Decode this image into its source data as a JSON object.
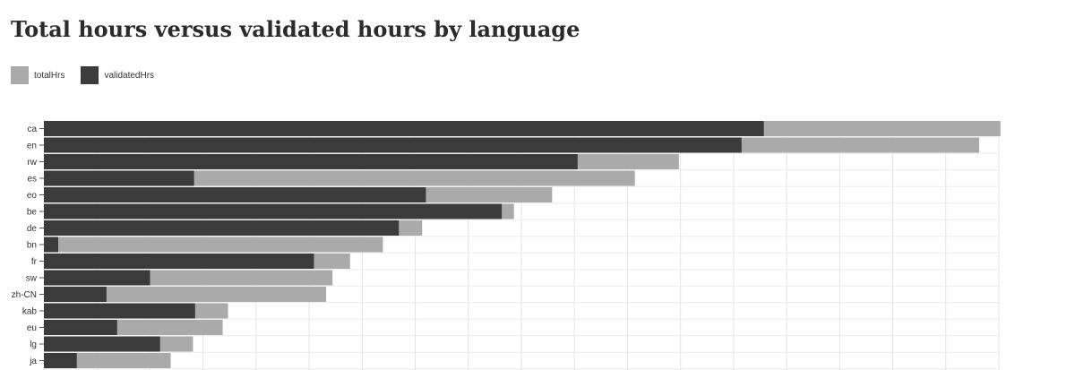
{
  "chart_data": {
    "type": "bar",
    "orientation": "horizontal",
    "stacked": false,
    "overlapping": true,
    "title": "Total hours versus validated hours by language",
    "categories": [
      "ca",
      "en",
      "rw",
      "es",
      "eo",
      "be",
      "de",
      "bn",
      "fr",
      "sw",
      "zh-CN",
      "kab",
      "eu",
      "lg",
      "ja"
    ],
    "series": [
      {
        "name": "totalHrs",
        "color": "#aaaaaa",
        "values": [
          1803,
          1763,
          1197,
          1114,
          958,
          886,
          713,
          639,
          577,
          544,
          532,
          347,
          337,
          281,
          239
        ]
      },
      {
        "name": "validatedHrs",
        "color": "#3b3b3b",
        "values": [
          1357,
          1315,
          1006,
          283,
          720,
          863,
          669,
          27,
          509,
          200,
          118,
          285,
          138,
          219,
          62
        ]
      }
    ],
    "xlim": [
      0,
      1800
    ],
    "x_grid_step": 100,
    "grid": true,
    "legend_position": "top-left"
  }
}
